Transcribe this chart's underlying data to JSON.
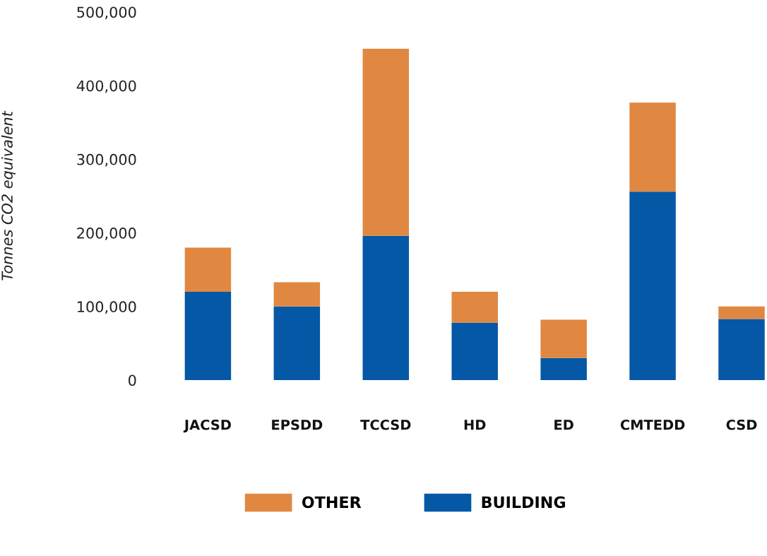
{
  "chart_data": {
    "type": "bar",
    "stacked": true,
    "ylabel": "Tonnes CO2 equivalent",
    "categories": [
      "JACSD",
      "EPSDD",
      "TCCSD",
      "HD",
      "ED",
      "CMTEDD",
      "CSD"
    ],
    "series": [
      {
        "name": "BUILDING",
        "color": "#0458a6",
        "values": [
          120000,
          100000,
          196000,
          78000,
          30000,
          256000,
          83000
        ]
      },
      {
        "name": "OTHER",
        "color": "#e08841",
        "values": [
          60000,
          33000,
          254000,
          42000,
          52000,
          121000,
          17000
        ]
      }
    ],
    "ylim": [
      0,
      500000
    ],
    "yticks": [
      0,
      {
        "value": 100000,
        "label": "100,000"
      },
      {
        "value": 200000,
        "label": "200,000"
      },
      {
        "value": 300000,
        "label": "300,000"
      },
      {
        "value": 400000,
        "label": "400,000"
      },
      {
        "value": 500000,
        "label": "500,000"
      }
    ],
    "grid": false,
    "legend": "bottom"
  }
}
